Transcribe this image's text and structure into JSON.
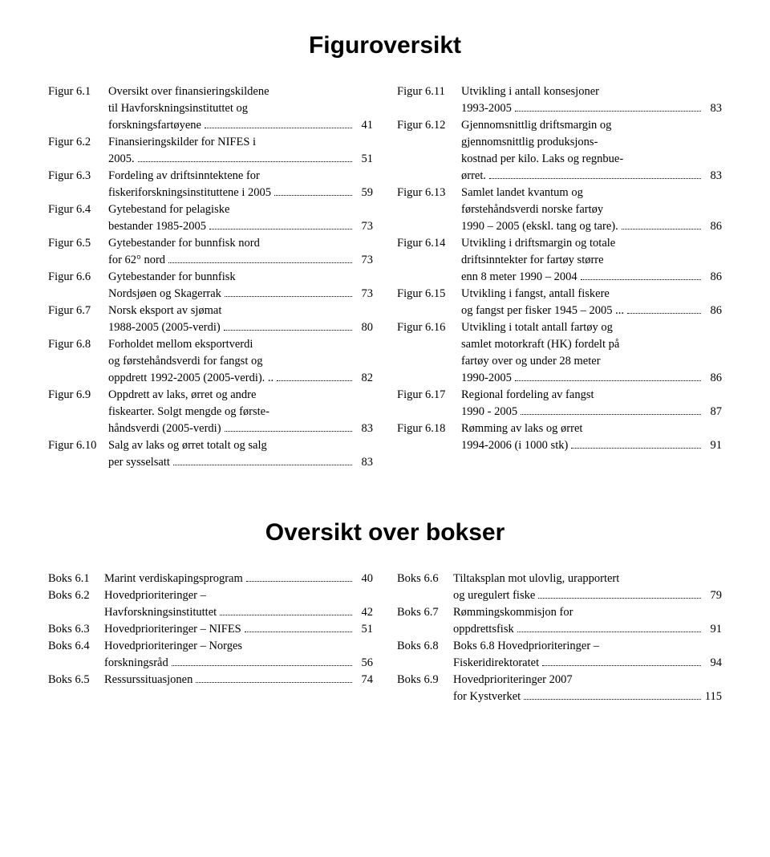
{
  "titles": {
    "figures": "Figuroversikt",
    "boxes": "Oversikt over bokser"
  },
  "figures_left": [
    {
      "label": "Figur 6.1",
      "lines": [
        "Oversikt over finansieringskildene",
        "til Havforskningsinstituttet og",
        "forskningsfartøyene"
      ],
      "page": "41"
    },
    {
      "label": "Figur 6.2",
      "lines": [
        "Finansieringskilder for NIFES i",
        "2005."
      ],
      "page": "51"
    },
    {
      "label": "Figur 6.3",
      "lines": [
        "Fordeling av driftsinntektene for",
        "fiskeriforskningsinstituttene i 2005"
      ],
      "page": "59"
    },
    {
      "label": "Figur 6.4",
      "lines": [
        "Gytebestand for pelagiske",
        "bestander 1985-2005"
      ],
      "page": "73"
    },
    {
      "label": "Figur 6.5",
      "lines": [
        "Gytebestander for bunnfisk nord",
        "for 62° nord"
      ],
      "page": "73"
    },
    {
      "label": "Figur 6.6",
      "lines": [
        "Gytebestander for bunnfisk",
        "Nordsjøen og Skagerrak"
      ],
      "page": "73"
    },
    {
      "label": "Figur 6.7",
      "lines": [
        "Norsk eksport av sjømat",
        "1988-2005 (2005-verdi)"
      ],
      "page": "80"
    },
    {
      "label": "Figur 6.8",
      "lines": [
        "Forholdet mellom eksportverdi",
        "og førstehåndsverdi for fangst og",
        "oppdrett 1992-2005 (2005-verdi). .."
      ],
      "page": "82"
    },
    {
      "label": "Figur 6.9",
      "lines": [
        "Oppdrett av laks, ørret og andre",
        "fiskearter. Solgt mengde og første-",
        "håndsverdi (2005-verdi)"
      ],
      "page": "83"
    },
    {
      "label": "Figur 6.10",
      "lines": [
        " Salg av laks og ørret totalt og salg",
        "per sysselsatt"
      ],
      "page": "83"
    }
  ],
  "figures_right": [
    {
      "label": "Figur 6.11",
      "lines": [
        "Utvikling i antall konsesjoner",
        "1993-2005"
      ],
      "page": "83"
    },
    {
      "label": "Figur 6.12",
      "lines": [
        "Gjennomsnittlig driftsmargin og",
        "gjennomsnittlig produksjons-",
        "kostnad per kilo. Laks og regnbue-",
        "ørret."
      ],
      "page": "83"
    },
    {
      "label": "Figur 6.13",
      "lines": [
        "Samlet landet kvantum og",
        "førstehåndsverdi norske fartøy",
        "1990 – 2005 (ekskl. tang og tare)."
      ],
      "page": "86"
    },
    {
      "label": "Figur 6.14",
      "lines": [
        "Utvikling i driftsmargin og totale",
        "driftsinntekter for fartøy større",
        "enn 8 meter 1990 – 2004"
      ],
      "page": "86"
    },
    {
      "label": "Figur 6.15",
      "lines": [
        "Utvikling i fangst, antall fiskere",
        "og fangst per fisker 1945 – 2005 ..."
      ],
      "page": "86"
    },
    {
      "label": "Figur 6.16",
      "lines": [
        "Utvikling i totalt antall fartøy og",
        "samlet motorkraft (HK) fordelt på",
        "fartøy over og under 28 meter",
        "1990-2005"
      ],
      "page": "86"
    },
    {
      "label": "Figur 6.17",
      "lines": [
        "Regional fordeling av fangst",
        "1990 - 2005"
      ],
      "page": "87"
    },
    {
      "label": "Figur 6.18",
      "lines": [
        "Rømming av laks og ørret",
        "1994-2006 (i 1000 stk)"
      ],
      "page": "91"
    }
  ],
  "boxes_left": [
    {
      "label": "Boks 6.1",
      "lines": [
        "Marint verdiskapingsprogram"
      ],
      "page": "40"
    },
    {
      "label": "Boks 6.2",
      "lines": [
        "Hovedprioriteringer –",
        "Havforskningsinstituttet"
      ],
      "page": "42"
    },
    {
      "label": "Boks 6.3",
      "lines": [
        "Hovedprioriteringer – NIFES"
      ],
      "page": "51"
    },
    {
      "label": "Boks 6.4",
      "lines": [
        "Hovedprioriteringer – Norges",
        "forskningsråd"
      ],
      "page": "56"
    },
    {
      "label": "Boks 6.5",
      "lines": [
        "Ressurssituasjonen"
      ],
      "page": "74"
    }
  ],
  "boxes_right": [
    {
      "label": "Boks 6.6",
      "lines": [
        "Tiltaksplan mot ulovlig, urapportert",
        "og uregulert fiske"
      ],
      "page": "79"
    },
    {
      "label": "Boks 6.7",
      "lines": [
        "Rømmingskommisjon for",
        "oppdrettsfisk"
      ],
      "page": "91"
    },
    {
      "label": "Boks 6.8",
      "lines": [
        "Boks 6.8 Hovedprioriteringer –",
        "Fiskeridirektoratet"
      ],
      "page": "94"
    },
    {
      "label": "Boks 6.9",
      "lines": [
        "Hovedprioriteringer 2007",
        "for Kystverket"
      ],
      "page": "115"
    }
  ]
}
